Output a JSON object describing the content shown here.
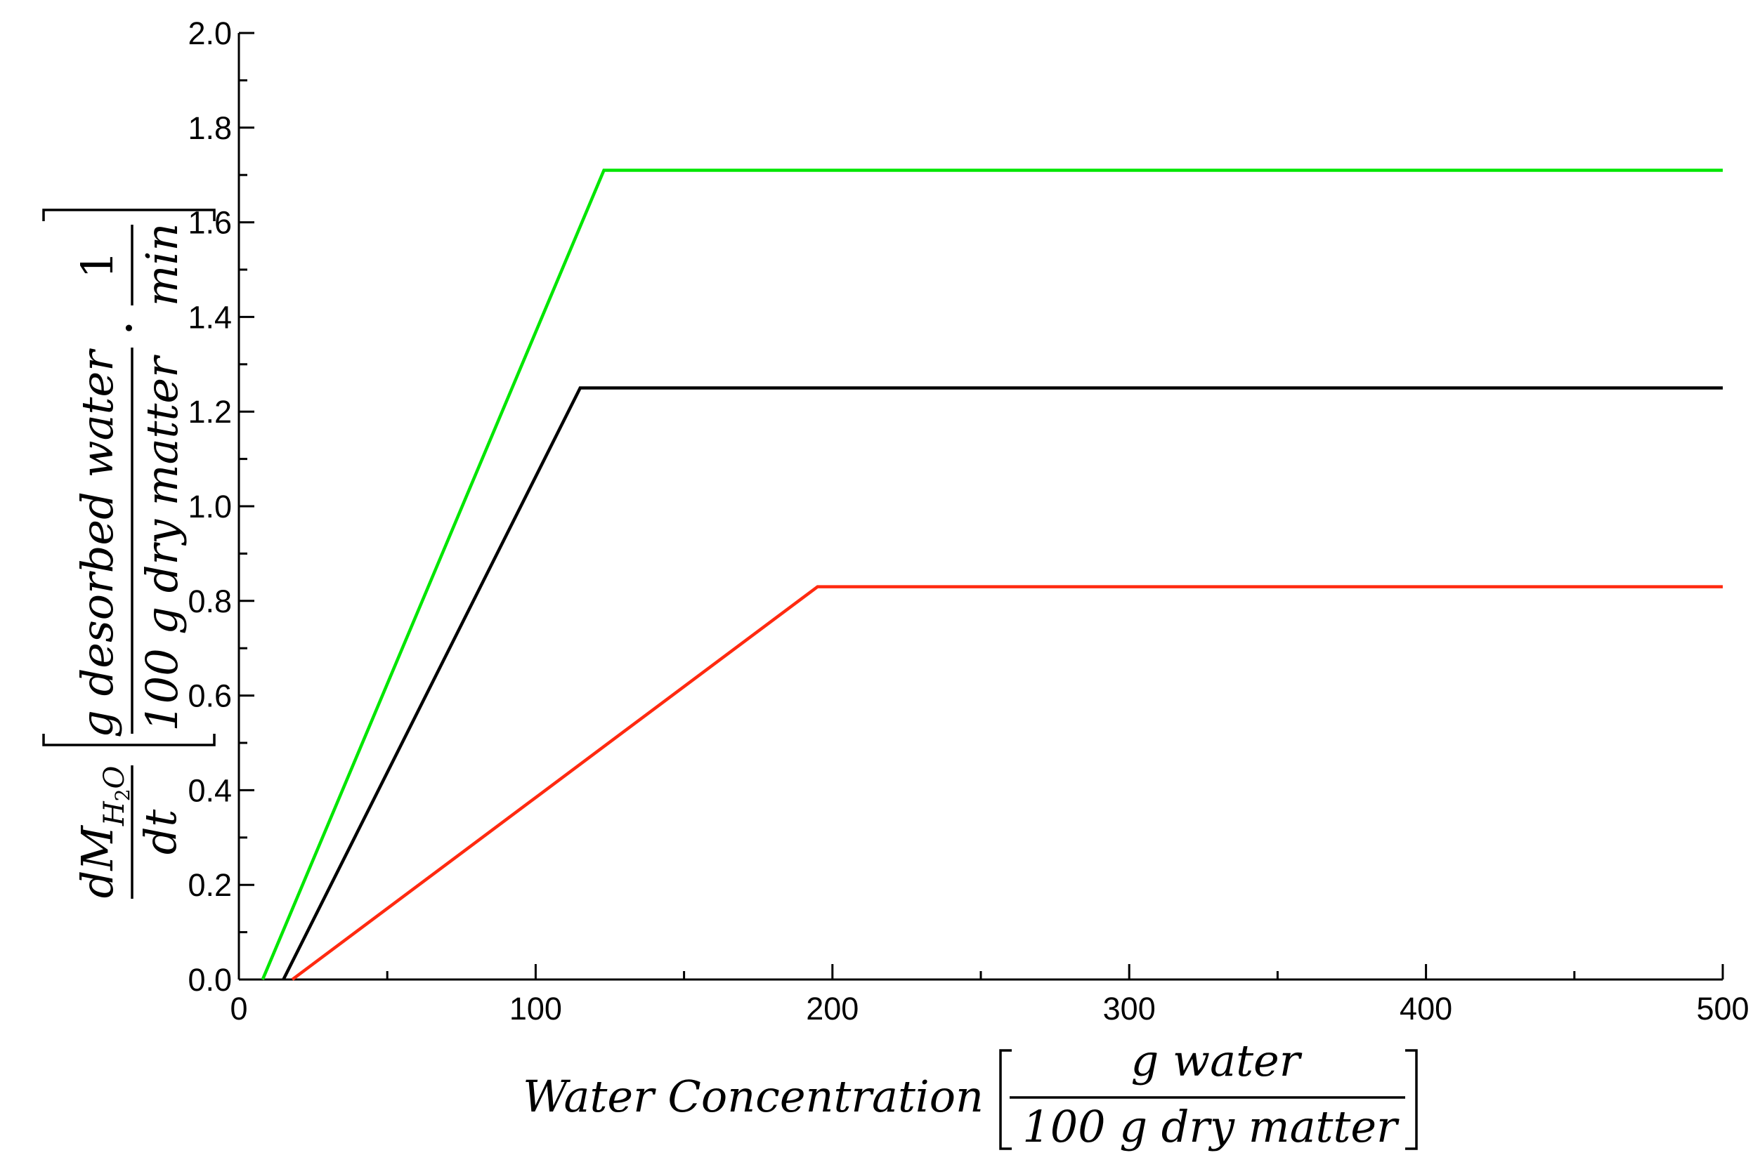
{
  "chart_data": {
    "type": "line",
    "xlim": [
      0,
      500
    ],
    "ylim": [
      0,
      2.0
    ],
    "x_ticks": [
      0,
      100,
      200,
      300,
      400,
      500
    ],
    "x_tick_labels": [
      "0",
      "100",
      "200",
      "300",
      "400",
      "500"
    ],
    "x_minor_step": 50,
    "y_ticks": [
      0,
      0.2,
      0.4,
      0.6,
      0.8,
      1.0,
      1.2,
      1.4,
      1.6,
      1.8,
      2.0
    ],
    "y_tick_labels": [
      "0.0",
      "0.2",
      "0.4",
      "0.6",
      "0.8",
      "1.0",
      "1.2",
      "1.4",
      "1.6",
      "1.8",
      "2.0"
    ],
    "y_minor_step": 0.1,
    "grid": false,
    "xlabel": {
      "main": "Water Concentration",
      "numerator": "g water",
      "denominator": "100 g dry matter"
    },
    "ylabel": {
      "deriv_num": "dM",
      "deriv_sub_H": "H",
      "deriv_sub_2": "2",
      "deriv_sub_O": "O",
      "deriv_den": "dt",
      "frac1_num": "g desorbed water",
      "frac1_den": "100 g dry matter",
      "dot": "·",
      "frac2_num": "1",
      "frac2_den": "min"
    },
    "series": [
      {
        "color": "#00e600",
        "x": [
          8,
          123,
          500
        ],
        "y": [
          0,
          1.71,
          1.71
        ]
      },
      {
        "color": "#000000",
        "x": [
          15,
          115,
          500
        ],
        "y": [
          0,
          1.25,
          1.25
        ]
      },
      {
        "color": "#ff2a10",
        "x": [
          18,
          195,
          500
        ],
        "y": [
          0,
          0.83,
          0.83
        ]
      }
    ]
  }
}
